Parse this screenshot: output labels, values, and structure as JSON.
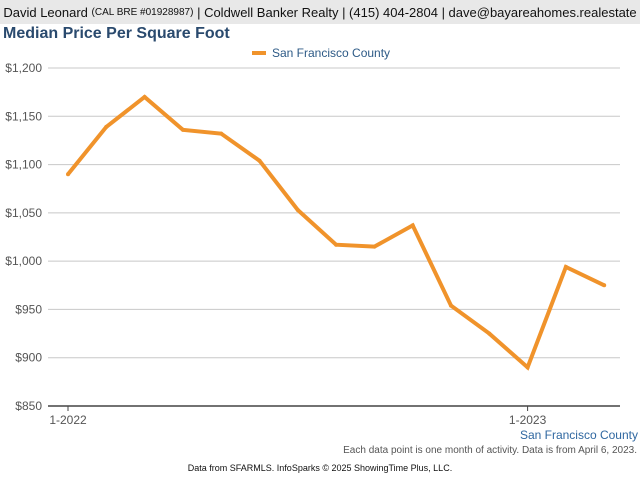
{
  "header": {
    "agent_name": "David Leonard",
    "license": "(CAL BRE #01928987)",
    "company": "| Coldwell Banker Realty | (415) 404-2804 | dave@bayareahomes.realestate"
  },
  "chart_data": {
    "type": "line",
    "title": "Median Price Per Square Foot",
    "xlabel": "",
    "ylabel": "",
    "x": [
      "2022-01",
      "2022-02",
      "2022-03",
      "2022-04",
      "2022-05",
      "2022-06",
      "2022-07",
      "2022-08",
      "2022-09",
      "2022-10",
      "2022-11",
      "2022-12",
      "2023-01",
      "2023-02",
      "2023-03"
    ],
    "x_tick_labels": [
      "1-2022",
      "1-2023"
    ],
    "series": [
      {
        "name": "San Francisco County",
        "color": "#f0932b",
        "values": [
          1090,
          1139,
          1170,
          1136,
          1132,
          1104,
          1053,
          1017,
          1015,
          1037,
          954,
          925,
          890,
          994,
          975
        ]
      }
    ],
    "y_ticks": [
      850,
      900,
      950,
      1000,
      1050,
      1100,
      1150,
      1200
    ],
    "y_tick_labels": [
      "$850",
      "$900",
      "$950",
      "$1,000",
      "$1,050",
      "$1,100",
      "$1,150",
      "$1,200"
    ],
    "ylim": [
      850,
      1200
    ],
    "grid": true,
    "legend_position": "top-center"
  },
  "footer": {
    "region_label": "San Francisco County",
    "note": "Each data point is one month of activity. Data is from April 6, 2023.",
    "credit": "Data from SFARMLS. InfoSparks © 2025 ShowingTime Plus, LLC."
  }
}
